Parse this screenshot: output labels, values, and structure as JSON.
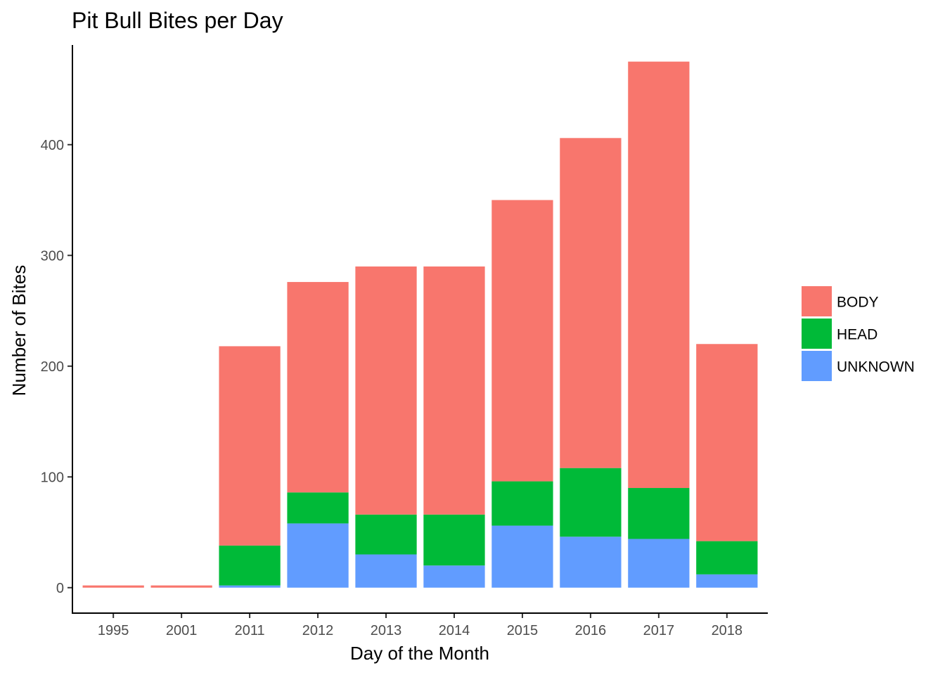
{
  "chart_data": {
    "type": "bar",
    "stacked": true,
    "title": "Pit Bull Bites per Day",
    "xlabel": "Day of the Month",
    "ylabel": "Number of Bites",
    "categories": [
      "1995",
      "2001",
      "2011",
      "2012",
      "2013",
      "2014",
      "2015",
      "2016",
      "2017",
      "2018"
    ],
    "series": [
      {
        "name": "UNKNOWN",
        "color": "#619CFF",
        "values": [
          0,
          0,
          2,
          58,
          30,
          20,
          56,
          46,
          44,
          12
        ]
      },
      {
        "name": "HEAD",
        "color": "#00BA38",
        "values": [
          0,
          0,
          36,
          28,
          36,
          46,
          40,
          62,
          46,
          30
        ]
      },
      {
        "name": "BODY",
        "color": "#F8766D",
        "values": [
          2,
          2,
          180,
          190,
          224,
          224,
          254,
          298,
          385,
          178
        ]
      }
    ],
    "legend_order": [
      "BODY",
      "HEAD",
      "UNKNOWN"
    ],
    "yticks": [
      0,
      100,
      200,
      300,
      400
    ],
    "ylim": [
      -23,
      490
    ],
    "grid": false,
    "legend_position": "right"
  }
}
